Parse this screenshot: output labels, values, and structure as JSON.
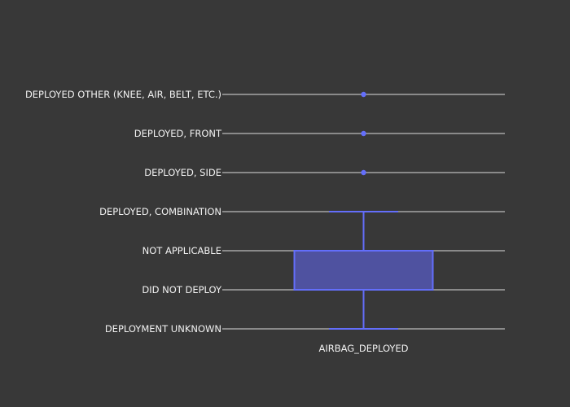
{
  "chart_data": {
    "type": "box",
    "orientation": "vertical",
    "categorical_y_axis": true,
    "y_categories": [
      "DEPLOYED OTHER (KNEE, AIR, BELT, ETC.)",
      "DEPLOYED, FRONT",
      "DEPLOYED, SIDE",
      "DEPLOYED, COMBINATION",
      "NOT APPLICABLE",
      "DID NOT DEPLOY",
      "DEPLOYMENT UNKNOWN"
    ],
    "x_categories": [
      "AIRBAG_DEPLOYED"
    ],
    "series": [
      {
        "x": "AIRBAG_DEPLOYED",
        "whisker_low": "DEPLOYMENT UNKNOWN",
        "q1": "DID NOT DEPLOY",
        "q3": "NOT APPLICABLE",
        "whisker_high": "DEPLOYED, COMBINATION",
        "outliers": [
          "DEPLOYED, SIDE",
          "DEPLOYED, FRONT",
          "DEPLOYED OTHER (KNEE, AIR, BELT, ETC.)"
        ]
      }
    ],
    "grid": true,
    "legend": "none",
    "colors": {
      "background": "#383838",
      "box_fill": "#4f52a0",
      "box_line": "#636efa",
      "grid": "#a6a6a6",
      "text": "#f2f2f2"
    }
  }
}
